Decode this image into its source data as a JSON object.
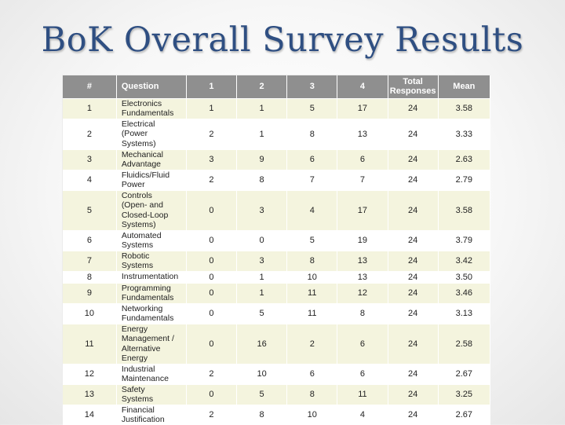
{
  "slide": {
    "title": "BoK Overall Survey Results"
  },
  "table": {
    "headers": {
      "num": "#",
      "question": "Question",
      "c1": "1",
      "c2": "2",
      "c3": "3",
      "c4": "4",
      "total": "Total\nResponses",
      "mean": "Mean"
    },
    "rows": [
      {
        "num": "1",
        "question": "Electronics\nFundamentals",
        "c1": "1",
        "c2": "1",
        "c3": "5",
        "c4": "17",
        "total": "24",
        "mean": "3.58"
      },
      {
        "num": "2",
        "question": "Electrical\n(Power\nSystems)",
        "c1": "2",
        "c2": "1",
        "c3": "8",
        "c4": "13",
        "total": "24",
        "mean": "3.33"
      },
      {
        "num": "3",
        "question": "Mechanical\nAdvantage",
        "c1": "3",
        "c2": "9",
        "c3": "6",
        "c4": "6",
        "total": "24",
        "mean": "2.63"
      },
      {
        "num": "4",
        "question": "Fluidics/Fluid\nPower",
        "c1": "2",
        "c2": "8",
        "c3": "7",
        "c4": "7",
        "total": "24",
        "mean": "2.79"
      },
      {
        "num": "5",
        "question": "Controls\n(Open- and\nClosed-Loop\nSystems)",
        "c1": "0",
        "c2": "3",
        "c3": "4",
        "c4": "17",
        "total": "24",
        "mean": "3.58"
      },
      {
        "num": "6",
        "question": "Automated\nSystems",
        "c1": "0",
        "c2": "0",
        "c3": "5",
        "c4": "19",
        "total": "24",
        "mean": "3.79"
      },
      {
        "num": "7",
        "question": "Robotic\nSystems",
        "c1": "0",
        "c2": "3",
        "c3": "8",
        "c4": "13",
        "total": "24",
        "mean": "3.42"
      },
      {
        "num": "8",
        "question": "Instrumentation",
        "c1": "0",
        "c2": "1",
        "c3": "10",
        "c4": "13",
        "total": "24",
        "mean": "3.50"
      },
      {
        "num": "9",
        "question": "Programming\nFundamentals",
        "c1": "0",
        "c2": "1",
        "c3": "11",
        "c4": "12",
        "total": "24",
        "mean": "3.46"
      },
      {
        "num": "10",
        "question": "Networking\nFundamentals",
        "c1": "0",
        "c2": "5",
        "c3": "11",
        "c4": "8",
        "total": "24",
        "mean": "3.13"
      },
      {
        "num": "11",
        "question": "Energy\nManagement /\nAlternative\nEnergy",
        "c1": "0",
        "c2": "16",
        "c3": "2",
        "c4": "6",
        "total": "24",
        "mean": "2.58"
      },
      {
        "num": "12",
        "question": "Industrial\nMaintenance",
        "c1": "2",
        "c2": "10",
        "c3": "6",
        "c4": "6",
        "total": "24",
        "mean": "2.67"
      },
      {
        "num": "13",
        "question": "Safety\nSystems",
        "c1": "0",
        "c2": "5",
        "c3": "8",
        "c4": "11",
        "total": "24",
        "mean": "3.25"
      },
      {
        "num": "14",
        "question": "Financial\nJustification",
        "c1": "2",
        "c2": "8",
        "c3": "10",
        "c4": "4",
        "total": "24",
        "mean": "2.67"
      }
    ]
  },
  "colors": {
    "title": "#2f4f82",
    "header_bg": "#8f8f8f",
    "row_odd": "#f4f4de",
    "row_even": "#ffffff"
  }
}
